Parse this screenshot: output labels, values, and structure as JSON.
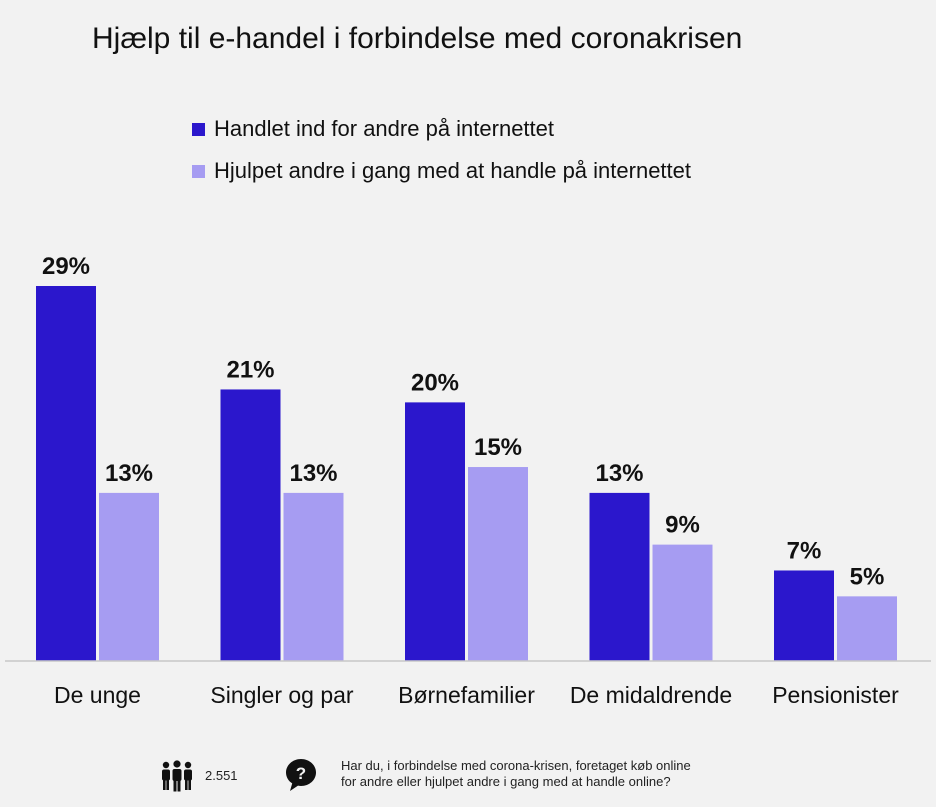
{
  "title": "Hjælp til e-handel i forbindelse med coronakrisen",
  "legend": [
    {
      "label": "Handlet ind for andre på internettet",
      "color": "#2b17cc"
    },
    {
      "label": "Hjulpet andre i gang med at handle på internettet",
      "color": "#a69cf2"
    }
  ],
  "chart_data": {
    "type": "bar",
    "title": "Hjælp til e-handel i forbindelse med coronakrisen",
    "categories": [
      "De unge",
      "Singler og par",
      "Børnefamilier",
      "De midaldrende",
      "Pensionister"
    ],
    "series": [
      {
        "name": "Handlet ind for andre på internettet",
        "values": [
          29,
          21,
          20,
          13,
          7
        ],
        "labels": [
          "29%",
          "21%",
          "20%",
          "13%",
          "7%"
        ],
        "color": "#2b17cc"
      },
      {
        "name": "Hjulpet andre i gang med at handle på internettet",
        "values": [
          13,
          13,
          15,
          9,
          5
        ],
        "labels": [
          "13%",
          "13%",
          "15%",
          "9%",
          "5%"
        ],
        "color": "#a69cf2"
      }
    ],
    "ylim": [
      0,
      29
    ],
    "grid": false,
    "legend_position": "top-left"
  },
  "footer": {
    "respondents_icon": "people-icon",
    "respondents": "2.551",
    "question_icon": "question-icon",
    "question_line1": "Har du, i forbindelse med corona-krisen, foretaget køb online",
    "question_line2": "for andre eller hjulpet andre i gang med at handle online?"
  }
}
